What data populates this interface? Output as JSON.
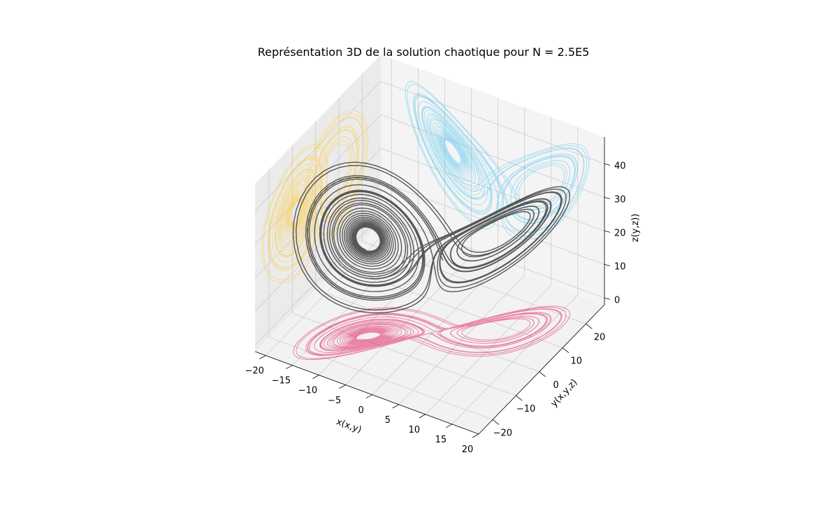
{
  "chart_data": {
    "type": "line",
    "subtype": "3d-trajectory",
    "title": "Représentation 3D de la solution chaotique pour N = 2.5E5",
    "xlabel": "x(x,y)",
    "ylabel": "y(x,y,z)",
    "zlabel": "z(y,z))",
    "xlim": [
      -22,
      20
    ],
    "ylim": [
      -26,
      28
    ],
    "zlim": [
      -2,
      48
    ],
    "xticks": [
      "−20",
      "−15",
      "−10",
      "−5",
      "0",
      "5",
      "10",
      "15",
      "20"
    ],
    "yticks": [
      "−20",
      "−10",
      "0",
      "10",
      "20"
    ],
    "zticks": [
      "0",
      "10",
      "20",
      "30",
      "40"
    ],
    "grid": true,
    "legend": "none",
    "colors": {
      "trajectory": "#3d3d3d",
      "xy_projection": "#e0004d",
      "xz_projection": "#ffc72c",
      "yz_projection": "#4ec3ef",
      "pane": "#f2f2f2",
      "grid": "#cccccc"
    },
    "series": [
      {
        "kind": "trajectory-3d",
        "color": "#3d3d3d"
      },
      {
        "kind": "projection-xy",
        "color": "#e0004d"
      },
      {
        "kind": "projection-xz",
        "color": "#ffc72c"
      },
      {
        "kind": "projection-yz",
        "color": "#4ec3ef"
      }
    ]
  }
}
